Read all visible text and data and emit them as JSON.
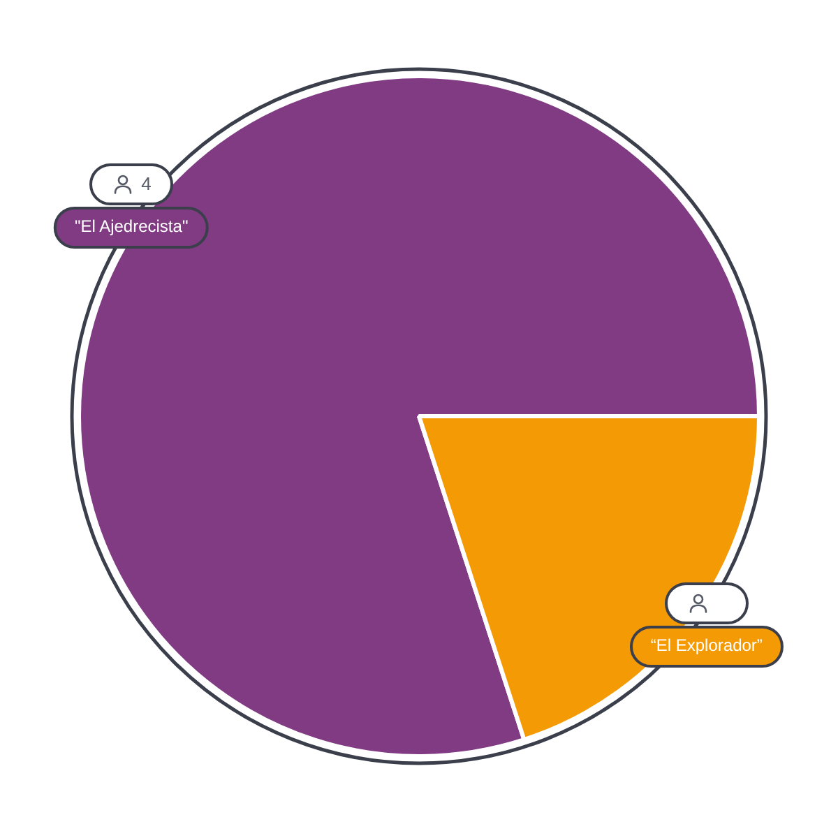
{
  "chart_data": {
    "type": "pie",
    "categories": [
      "\"El Ajedrecista\"",
      "“El Explorador”"
    ],
    "values": [
      4,
      1
    ],
    "colors": [
      "#803b83",
      "#f49a05"
    ],
    "value_labels": [
      "4",
      null
    ],
    "legend": false
  }
}
